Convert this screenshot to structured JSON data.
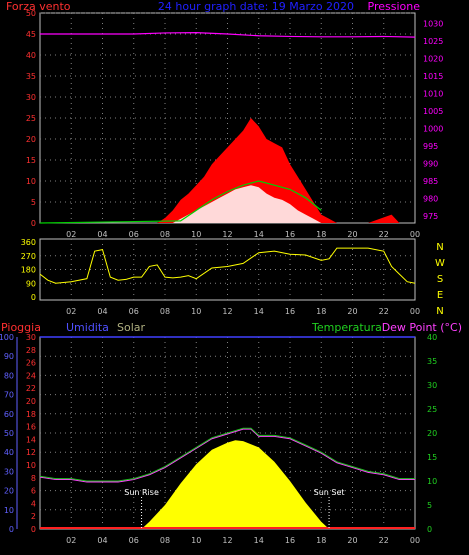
{
  "header": {
    "left_label": "Forza vento",
    "title": "24 hour graph date: 19 Marzo 2020",
    "right_label": "Pressione"
  },
  "time_ticks": [
    "02",
    "04",
    "06",
    "08",
    "10",
    "12",
    "14",
    "16",
    "18",
    "20",
    "22",
    "00"
  ],
  "colors": {
    "wind": "#ff0000",
    "gust_fill": "#ffffff",
    "wind_avg": "#00d000",
    "pressure": "#ff00ff",
    "direction": "#ffff00",
    "rain": "#ff2020",
    "humidity": "#4040ff",
    "solar": "#ffff00",
    "temperature": "#20c020",
    "dewpoint": "#ff40ff",
    "grid": "#808080"
  },
  "chart_data": [
    {
      "type": "line",
      "title": "24 hour graph date: 19 Marzo 2020",
      "x_ticks": [
        "02",
        "04",
        "06",
        "08",
        "10",
        "12",
        "14",
        "16",
        "18",
        "20",
        "22",
        "00"
      ],
      "y_left_label": "Forza vento",
      "y_left_ticks": [
        "0",
        "5",
        "10",
        "15",
        "20",
        "25",
        "30",
        "35",
        "40",
        "45",
        "50"
      ],
      "y_left_range": [
        0,
        50
      ],
      "y_right_label": "Pressione",
      "y_right_ticks": [
        "975",
        "980",
        "985",
        "990",
        "995",
        "1000",
        "1005",
        "1010",
        "1015",
        "1020",
        "1025",
        "1030"
      ],
      "y_right_range": [
        973,
        1033
      ],
      "grid": true,
      "series": [
        {
          "name": "Forza vento",
          "axis": "left",
          "x": [
            0,
            7.5,
            8,
            8.5,
            9,
            9.5,
            10,
            10.5,
            11,
            11.5,
            12,
            12.5,
            13,
            13.5,
            14,
            14.5,
            15,
            15.5,
            16,
            16.5,
            17,
            17.5,
            18,
            18.5,
            19,
            21,
            22.5,
            23,
            24
          ],
          "y": [
            0,
            0,
            1.2,
            3,
            5.5,
            7,
            9,
            11,
            14,
            16,
            18,
            20,
            22,
            25,
            23,
            20,
            19,
            18,
            14,
            11,
            8,
            5,
            2,
            1,
            0,
            0,
            2,
            0,
            0
          ]
        },
        {
          "name": "",
          "axis": "left",
          "x": [
            0,
            8.5,
            9,
            9.5,
            10,
            10.5,
            11,
            11.5,
            12,
            12.5,
            13,
            13.5,
            14,
            14.5,
            15,
            15.5,
            16,
            16.5,
            17,
            17.5,
            18
          ],
          "y": [
            0,
            0,
            1,
            2,
            3,
            4,
            5,
            6,
            7,
            8,
            8.5,
            9,
            8.5,
            7,
            6,
            5.5,
            4.5,
            3,
            2,
            1,
            0
          ]
        },
        {
          "name": "",
          "axis": "left",
          "x": [
            0,
            9,
            10,
            11,
            12,
            13,
            14,
            15,
            16,
            17,
            18
          ],
          "y": [
            0,
            0.5,
            3,
            5.5,
            7.5,
            9,
            10,
            9,
            8,
            6,
            3
          ]
        },
        {
          "name": "Pressione",
          "axis": "right",
          "x": [
            0,
            2,
            4,
            6,
            8,
            10,
            12,
            14,
            16,
            18,
            20,
            22,
            24
          ],
          "y": [
            1027,
            1027,
            1027,
            1027,
            1027.3,
            1027.4,
            1027,
            1026.5,
            1026.3,
            1026.2,
            1026.2,
            1026.3,
            1026.1
          ]
        }
      ]
    },
    {
      "type": "line",
      "x_ticks": [
        "02",
        "04",
        "06",
        "08",
        "10",
        "12",
        "14",
        "16",
        "18",
        "20",
        "22",
        "00"
      ],
      "y_left_ticks": [
        "360",
        "270",
        "180",
        "90",
        "0"
      ],
      "y_range": [
        0,
        360
      ],
      "right_labels": [
        "N",
        "W",
        "S",
        "E",
        "N"
      ],
      "grid": true,
      "series": [
        {
          "name": "",
          "x": [
            0,
            0.5,
            1,
            2,
            3,
            3.5,
            4,
            4.5,
            5,
            5.5,
            6,
            6.5,
            7,
            7.5,
            8,
            8.5,
            9,
            9.5,
            10,
            11,
            12,
            13,
            14,
            15,
            16,
            17,
            18,
            18.5,
            19,
            20,
            21,
            22,
            22.5,
            23,
            23.5,
            24
          ],
          "y": [
            150,
            110,
            90,
            100,
            120,
            300,
            310,
            130,
            110,
            115,
            130,
            130,
            200,
            210,
            130,
            125,
            130,
            140,
            120,
            190,
            200,
            220,
            290,
            300,
            280,
            275,
            240,
            250,
            320,
            320,
            320,
            300,
            200,
            150,
            100,
            90
          ]
        }
      ]
    },
    {
      "type": "area",
      "x_ticks": [
        "02",
        "04",
        "06",
        "08",
        "10",
        "12",
        "14",
        "16",
        "18",
        "20",
        "22",
        "00"
      ],
      "left_labels": {
        "rain": "Pioggia",
        "humidity": "Umidita",
        "solar": "Solar"
      },
      "right_labels": {
        "temperature": "Temperatura",
        "dewpoint": "Dew Point (°C)"
      },
      "y_humidity_ticks": [
        "0",
        "10",
        "20",
        "30",
        "40",
        "50",
        "60",
        "70",
        "80",
        "90",
        "100"
      ],
      "y_rain_ticks": [
        "0",
        "2",
        "4",
        "6",
        "8",
        "10",
        "12",
        "14",
        "16",
        "18",
        "20",
        "22",
        "24",
        "26",
        "28",
        "30"
      ],
      "y_temp_ticks": [
        "0",
        "5",
        "10",
        "15",
        "20",
        "25",
        "30",
        "35",
        "40"
      ],
      "humidity_range": [
        0,
        100
      ],
      "rain_range": [
        0,
        30
      ],
      "temp_range": [
        0,
        40
      ],
      "annotations": {
        "sunrise": "Sun Rise",
        "sunset": "Sun Set"
      },
      "grid": true,
      "series": [
        {
          "name": "Temperatura",
          "axis": "temp",
          "x": [
            0,
            1,
            2,
            3,
            4,
            5,
            6,
            7,
            8,
            9,
            10,
            11,
            12,
            13,
            13.5,
            14,
            15,
            16,
            17,
            18,
            19,
            20,
            21,
            22,
            23,
            24
          ],
          "y": [
            11,
            10.5,
            10.5,
            10,
            10,
            10,
            10.5,
            11.5,
            13,
            15,
            17,
            19,
            20,
            21,
            21,
            19.5,
            19.5,
            19,
            17.5,
            16,
            14,
            13,
            12,
            11.5,
            10.5,
            10.5
          ]
        },
        {
          "name": "Dew Point (°C)",
          "axis": "temp",
          "x": [
            0,
            1,
            2,
            3,
            4,
            5,
            6,
            7,
            8,
            9,
            10,
            11,
            12,
            13,
            13.5,
            14,
            15,
            16,
            17,
            18,
            19,
            20,
            21,
            22,
            23,
            24
          ],
          "y": [
            10.8,
            10.3,
            10.3,
            9.8,
            9.8,
            9.8,
            10.3,
            11.3,
            12.8,
            14.8,
            16.8,
            18.8,
            19.8,
            20.8,
            20.8,
            19.3,
            19.3,
            18.8,
            17.3,
            15.8,
            13.8,
            12.8,
            11.8,
            11.3,
            10.3,
            10.3
          ]
        },
        {
          "name": "Solar",
          "axis": "temp",
          "x": [
            6.5,
            7,
            8,
            9,
            10,
            11,
            12,
            12.5,
            13,
            14,
            15,
            16,
            17,
            18,
            18.5
          ],
          "y": [
            0,
            1.5,
            5,
            9.5,
            13.5,
            16.5,
            18,
            18.5,
            18.3,
            17,
            14,
            10,
            5.5,
            1.5,
            0
          ]
        },
        {
          "name": "Pioggia",
          "axis": "rain",
          "x": [
            0,
            24
          ],
          "y": [
            0,
            0
          ]
        }
      ]
    }
  ]
}
